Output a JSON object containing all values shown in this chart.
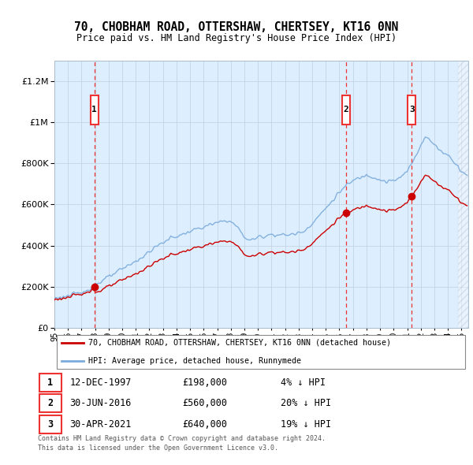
{
  "title": "70, CHOBHAM ROAD, OTTERSHAW, CHERTSEY, KT16 0NN",
  "subtitle": "Price paid vs. HM Land Registry's House Price Index (HPI)",
  "sale_dates": [
    "1997-12-12",
    "2016-06-30",
    "2021-04-30"
  ],
  "sale_prices": [
    198000,
    560000,
    640000
  ],
  "sale_labels": [
    "1",
    "2",
    "3"
  ],
  "sale_pct": [
    "4%",
    "20%",
    "19%"
  ],
  "sale_date_labels": [
    "12-DEC-1997",
    "30-JUN-2016",
    "30-APR-2021"
  ],
  "sale_price_labels": [
    "£198,000",
    "£560,000",
    "£640,000"
  ],
  "legend_line1": "70, CHOBHAM ROAD, OTTERSHAW, CHERTSEY, KT16 0NN (detached house)",
  "legend_line2": "HPI: Average price, detached house, Runnymede",
  "footnote1": "Contains HM Land Registry data © Crown copyright and database right 2024.",
  "footnote2": "This data is licensed under the Open Government Licence v3.0.",
  "hpi_color": "#7aabdb",
  "price_color": "#cc0000",
  "dashed_line_color": "#ee3333",
  "background_color": "#ddeeff",
  "grid_color": "#c0cfe0",
  "ylim": [
    0,
    1300000
  ],
  "xlim_start": 1995.0,
  "xlim_end": 2025.5,
  "hpi_scale": 0.96,
  "hpi_base_1995": 145000,
  "hpi_base_2025": 720000
}
